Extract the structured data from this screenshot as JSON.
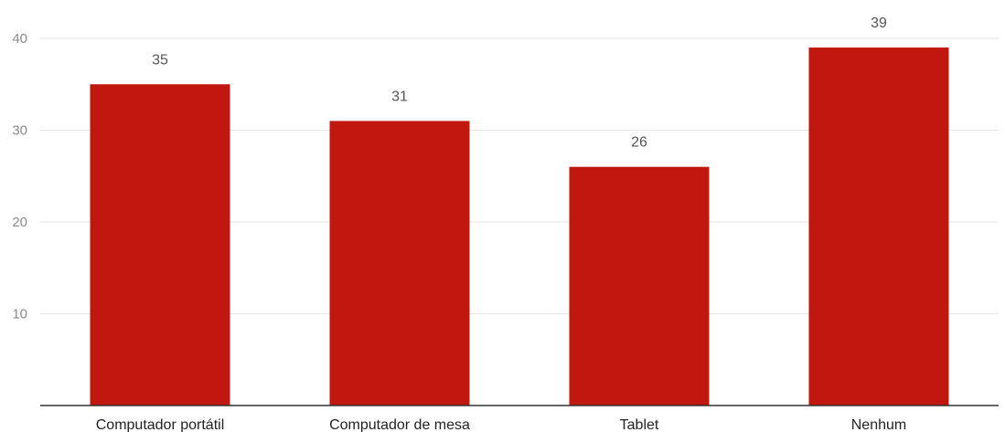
{
  "chart_data": {
    "type": "bar",
    "categories": [
      "Computador portátil",
      "Computador de mesa",
      "Tablet",
      "Nenhum"
    ],
    "values": [
      35,
      31,
      26,
      39
    ],
    "yticks": [
      10,
      20,
      30,
      40
    ],
    "ylim": [
      0,
      40
    ],
    "grid": true,
    "legend": "none",
    "data_labels": true,
    "colors": {
      "bar": "#c0170e"
    }
  }
}
